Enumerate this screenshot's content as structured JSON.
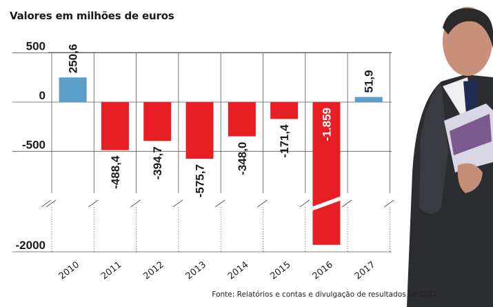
{
  "subtitle": "Valores em milhões de euros",
  "source": "Fonte: Relatórios e contas e divulgação de resultados da CGD",
  "chart_data": {
    "type": "bar",
    "title": "",
    "xlabel": "",
    "ylabel": "",
    "y_ticks": [
      "500",
      "0",
      "-500",
      "-2000"
    ],
    "axis_break": true,
    "categories": [
      "2010",
      "2011",
      "2012",
      "2013",
      "2014",
      "2015",
      "2016",
      "2017"
    ],
    "values": [
      250.6,
      -488.4,
      -394.7,
      -575.7,
      -348.0,
      -171.4,
      -1859,
      51.9
    ],
    "value_labels": [
      "250,6",
      "-488,4",
      "-394,7",
      "-575,7",
      "-348,0",
      "-171,4",
      "-1.859",
      "51,9"
    ],
    "colors": {
      "positive": "#5b9fc8",
      "negative": "#e81e25"
    },
    "grid": true
  }
}
